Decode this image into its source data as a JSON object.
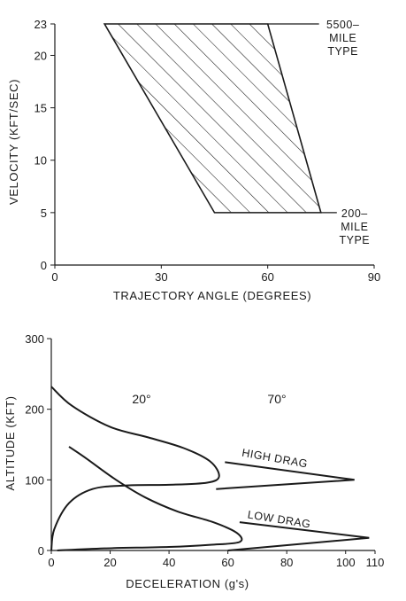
{
  "chart_data": [
    {
      "type": "area",
      "xlabel": "TRAJECTORY ANGLE (DEGREES)",
      "ylabel": "VELOCITY (KFT/SEC)",
      "xlim": [
        0,
        90
      ],
      "ylim": [
        0,
        23
      ],
      "x_ticks": [
        "0",
        "30",
        "60",
        "90"
      ],
      "y_ticks": [
        "0",
        "5",
        "10",
        "15",
        "20",
        "23"
      ],
      "grid": false,
      "fill": "diagonal-hatch",
      "region": [
        {
          "x": 14,
          "y": 23
        },
        {
          "x": 60,
          "y": 23
        },
        {
          "x": 75,
          "y": 5
        },
        {
          "x": 45,
          "y": 5
        }
      ],
      "annotations": [
        {
          "lines": [
            "5500–",
            "MILE",
            "TYPE"
          ],
          "x": 60,
          "y": 23
        },
        {
          "lines": [
            "200–",
            "MILE",
            "TYPE"
          ],
          "x": 75,
          "y": 5
        }
      ]
    },
    {
      "type": "line",
      "xlabel": "DECELERATION (g's)",
      "ylabel": "ALTITUDE (KFT)",
      "xlim": [
        0,
        110
      ],
      "ylim": [
        0,
        300
      ],
      "x_ticks": [
        "0",
        "20",
        "40",
        "60",
        "80",
        "100",
        "110"
      ],
      "y_ticks": [
        "0",
        "100",
        "200",
        "300"
      ],
      "grid": false,
      "angle_labels": [
        "20°",
        "70°"
      ],
      "series": [
        {
          "group": "20°",
          "name": "",
          "points": [
            [
              0,
              232
            ],
            [
              7,
              205
            ],
            [
              20,
              175
            ],
            [
              33,
              160
            ],
            [
              45,
              145
            ],
            [
              54,
              126
            ],
            [
              57,
              105
            ],
            [
              53,
              96
            ],
            [
              40,
              93
            ],
            [
              25,
              92
            ],
            [
              14,
              87
            ],
            [
              6,
              67
            ],
            [
              1,
              30
            ],
            [
              0,
              0
            ]
          ]
        },
        {
          "group": "20°",
          "name": "",
          "points": [
            [
              6,
              147
            ],
            [
              12,
              130
            ],
            [
              22,
              100
            ],
            [
              32,
              75
            ],
            [
              43,
              55
            ],
            [
              55,
              40
            ],
            [
              63,
              25
            ],
            [
              64,
              12
            ],
            [
              54,
              8
            ],
            [
              40,
              5
            ],
            [
              18,
              3
            ],
            [
              2,
              0
            ]
          ]
        },
        {
          "group": "70°",
          "name": "HIGH DRAG",
          "points": [
            [
              59,
              125
            ],
            [
              103,
              100
            ],
            [
              56,
              87
            ]
          ]
        },
        {
          "group": "70°",
          "name": "LOW DRAG",
          "points": [
            [
              64,
              40
            ],
            [
              108,
              18
            ],
            [
              60,
              0
            ]
          ]
        }
      ],
      "annotations": [
        {
          "text": "HIGH DRAG",
          "x": 76,
          "y": 132
        },
        {
          "text": "LOW DRAG",
          "x": 82,
          "y": 45
        }
      ]
    }
  ]
}
